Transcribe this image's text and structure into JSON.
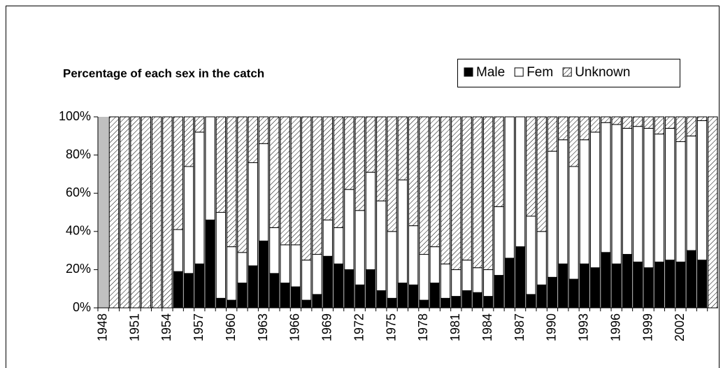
{
  "chart_data": {
    "type": "stacked-bar",
    "title": "Percentage of each sex in the catch",
    "categories": [
      "1948",
      null,
      null,
      "1951",
      null,
      null,
      "1954",
      null,
      null,
      "1957",
      null,
      null,
      "1960",
      null,
      null,
      "1963",
      null,
      null,
      "1966",
      null,
      null,
      "1969",
      null,
      null,
      "1972",
      null,
      null,
      "1975",
      null,
      null,
      "1978",
      null,
      null,
      "1981",
      null,
      null,
      "1984",
      null,
      null,
      "1987",
      null,
      null,
      "1990",
      null,
      null,
      "1993",
      null,
      null,
      "1996",
      null,
      null,
      "1999",
      null,
      null,
      "2002",
      null,
      null,
      null
    ],
    "series": [
      {
        "name": "Male",
        "color": "#000000",
        "values": [
          null,
          0,
          0,
          0,
          0,
          0,
          0,
          19,
          18,
          23,
          46,
          5,
          4,
          13,
          22,
          35,
          18,
          13,
          11,
          4,
          7,
          27,
          23,
          20,
          12,
          20,
          9,
          5,
          13,
          12,
          4,
          13,
          5,
          6,
          9,
          8,
          6,
          17,
          26,
          32,
          7,
          12,
          16,
          23,
          15,
          23,
          21,
          29,
          23,
          28,
          24,
          21,
          24,
          25,
          24,
          30,
          25,
          0
        ]
      },
      {
        "name": "Fem",
        "color": "#ffffff",
        "values": [
          null,
          0,
          0,
          0,
          0,
          0,
          0,
          22,
          56,
          69,
          54,
          45,
          28,
          16,
          54,
          51,
          24,
          20,
          22,
          21,
          21,
          19,
          19,
          42,
          39,
          51,
          47,
          35,
          54,
          31,
          24,
          19,
          18,
          14,
          16,
          13,
          14,
          36,
          74,
          68,
          41,
          28,
          66,
          65,
          59,
          65,
          71,
          68,
          73,
          66,
          71,
          73,
          67,
          69,
          63,
          60,
          73,
          0
        ]
      },
      {
        "name": "Unknown",
        "color": "#ffffff",
        "pattern": "hatch",
        "values": [
          null,
          100,
          100,
          100,
          100,
          100,
          100,
          59,
          26,
          8,
          0,
          50,
          68,
          71,
          24,
          14,
          58,
          67,
          67,
          75,
          72,
          54,
          58,
          38,
          49,
          29,
          44,
          60,
          33,
          57,
          72,
          68,
          77,
          80,
          75,
          79,
          80,
          47,
          0,
          0,
          52,
          60,
          18,
          12,
          26,
          12,
          8,
          3,
          4,
          6,
          5,
          6,
          9,
          6,
          13,
          10,
          2,
          100
        ]
      }
    ],
    "ylim": [
      0,
      100
    ],
    "yticks": [
      {
        "value": 0,
        "label": "0%"
      },
      {
        "value": 20,
        "label": "20%"
      },
      {
        "value": 40,
        "label": "40%"
      },
      {
        "value": 60,
        "label": "60%"
      },
      {
        "value": 80,
        "label": "80%"
      },
      {
        "value": 100,
        "label": "100%"
      }
    ],
    "plot_background": "#c0c0c0"
  }
}
